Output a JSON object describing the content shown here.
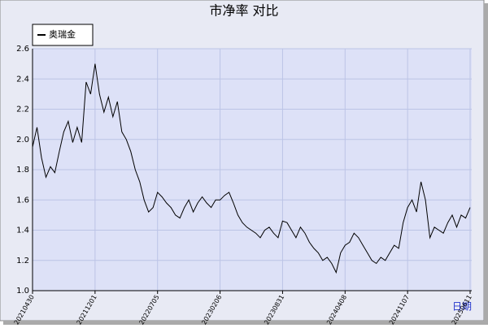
{
  "chart_data": {
    "type": "line",
    "title": "市净率 对比",
    "xlabel": "日期",
    "categories": [
      "20210430",
      null,
      null,
      null,
      null,
      null,
      null,
      null,
      null,
      null,
      null,
      null,
      null,
      null,
      "20211201",
      null,
      null,
      null,
      null,
      null,
      null,
      null,
      null,
      null,
      null,
      null,
      null,
      null,
      "20220705",
      null,
      null,
      null,
      null,
      null,
      null,
      null,
      null,
      null,
      null,
      null,
      null,
      null,
      "20230206",
      null,
      null,
      null,
      null,
      null,
      null,
      null,
      null,
      null,
      null,
      null,
      null,
      null,
      "20230831",
      null,
      null,
      null,
      null,
      null,
      null,
      null,
      null,
      null,
      null,
      null,
      null,
      null,
      "20240408",
      null,
      null,
      null,
      null,
      null,
      null,
      null,
      null,
      null,
      null,
      null,
      null,
      null,
      "20241107",
      null,
      null,
      null,
      null,
      null,
      null,
      null,
      null,
      null,
      null,
      null,
      null,
      null,
      "20250611"
    ],
    "series": [
      {
        "name": "奥瑞金",
        "color": "#000000",
        "values": [
          1.95,
          2.08,
          1.88,
          1.75,
          1.82,
          1.78,
          1.92,
          2.05,
          2.12,
          1.98,
          2.08,
          1.98,
          2.38,
          2.3,
          2.5,
          2.3,
          2.18,
          2.28,
          2.15,
          2.25,
          2.05,
          2.0,
          1.92,
          1.8,
          1.72,
          1.6,
          1.52,
          1.55,
          1.65,
          1.62,
          1.58,
          1.55,
          1.5,
          1.48,
          1.55,
          1.6,
          1.52,
          1.58,
          1.62,
          1.58,
          1.55,
          1.6,
          1.6,
          1.63,
          1.65,
          1.58,
          1.5,
          1.45,
          1.42,
          1.4,
          1.38,
          1.35,
          1.4,
          1.42,
          1.38,
          1.35,
          1.46,
          1.45,
          1.4,
          1.35,
          1.42,
          1.38,
          1.32,
          1.28,
          1.25,
          1.2,
          1.22,
          1.18,
          1.12,
          1.25,
          1.3,
          1.32,
          1.38,
          1.35,
          1.3,
          1.25,
          1.2,
          1.18,
          1.22,
          1.2,
          1.25,
          1.3,
          1.28,
          1.45,
          1.55,
          1.6,
          1.52,
          1.72,
          1.6,
          1.35,
          1.42,
          1.4,
          1.38,
          1.45,
          1.5,
          1.42,
          1.5,
          1.48,
          1.55
        ]
      }
    ],
    "ylim": [
      1.0,
      2.6
    ],
    "yticks": [
      {
        "value": 1.0,
        "label": "1.0"
      },
      1.2,
      1.4,
      1.6,
      1.8,
      {
        "value": 2.0,
        "label": "2.0"
      },
      2.2,
      2.4,
      2.6
    ],
    "grid": true,
    "legend": "top-left"
  }
}
